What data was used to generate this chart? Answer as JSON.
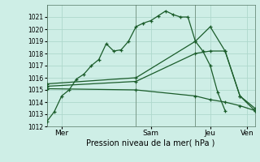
{
  "xlabel": "Pression niveau de la mer( hPa )",
  "ylim": [
    1012,
    1022
  ],
  "yticks": [
    1012,
    1013,
    1014,
    1015,
    1016,
    1017,
    1018,
    1019,
    1020,
    1021
  ],
  "xlim": [
    0,
    168
  ],
  "bg_color": "#ceeee6",
  "grid_color": "#aed8cc",
  "line_color": "#1a5c2a",
  "vline_positions": [
    0,
    72,
    120,
    168
  ],
  "vline_color": "#7a9a8a",
  "xtick_positions": [
    12,
    84,
    132,
    162
  ],
  "xtick_labels": [
    "Mer",
    "Sam",
    "Jeu",
    "Ven"
  ],
  "series": [
    {
      "x": [
        0,
        6,
        12,
        18,
        24,
        30,
        36,
        42,
        48,
        54,
        60,
        66,
        72,
        78,
        84,
        90,
        96,
        102,
        108,
        114,
        120,
        126,
        132,
        138,
        144
      ],
      "y": [
        1012.4,
        1013.2,
        1014.5,
        1015.0,
        1015.9,
        1016.3,
        1017.0,
        1017.5,
        1018.8,
        1018.2,
        1018.3,
        1019.0,
        1020.2,
        1020.5,
        1020.7,
        1021.1,
        1021.5,
        1021.2,
        1021.0,
        1021.0,
        1019.0,
        1018.2,
        1017.0,
        1014.8,
        1013.3
      ]
    },
    {
      "x": [
        0,
        72,
        120,
        132,
        144,
        156,
        168
      ],
      "y": [
        1015.5,
        1016.0,
        1019.0,
        1020.2,
        1018.2,
        1014.5,
        1013.3
      ]
    },
    {
      "x": [
        0,
        72,
        120,
        132,
        144,
        156,
        168
      ],
      "y": [
        1015.3,
        1015.7,
        1018.0,
        1018.2,
        1018.2,
        1014.5,
        1013.5
      ]
    },
    {
      "x": [
        0,
        72,
        120,
        132,
        144,
        156,
        168
      ],
      "y": [
        1015.1,
        1015.0,
        1014.5,
        1014.2,
        1014.0,
        1013.7,
        1013.3
      ]
    }
  ]
}
